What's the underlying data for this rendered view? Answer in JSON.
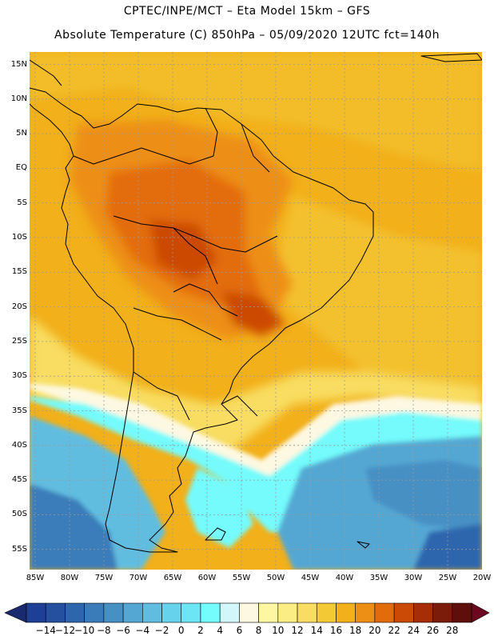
{
  "header": {
    "title_line1": "CPTEC/INPE/MCT –   Eta Model 15km – GFS",
    "title_line2": "Absolute Temperature (C) 850hPa – 05/09/2020 12UTC fct=140h"
  },
  "map": {
    "lat_labels": [
      "15N",
      "10N",
      "5N",
      "EQ",
      "5S",
      "10S",
      "15S",
      "20S",
      "25S",
      "30S",
      "35S",
      "40S",
      "45S",
      "50S",
      "55S"
    ],
    "lon_labels": [
      "85W",
      "80W",
      "75W",
      "70W",
      "65W",
      "60W",
      "55W",
      "50W",
      "45W",
      "40W",
      "35W",
      "30W",
      "25W",
      "20W"
    ]
  },
  "legend": {
    "labels": [
      "−14",
      "−12",
      "−10",
      "−8",
      "−6",
      "−4",
      "−2",
      "0",
      "2",
      "4",
      "6",
      "8",
      "10",
      "12",
      "14",
      "16",
      "18",
      "20",
      "22",
      "24",
      "26",
      "28"
    ],
    "colors": [
      "#1e3f96",
      "#24509f",
      "#2e66ad",
      "#3a7bba",
      "#4690c4",
      "#55a7d3",
      "#60bde0",
      "#66d2ec",
      "#6ce6f4",
      "#74fbfb",
      "#d3f6fb",
      "#fdf8e1",
      "#fdf7a1",
      "#fbec83",
      "#f8dd62",
      "#f4c936",
      "#f2b01a",
      "#ed8f14",
      "#e36c0a",
      "#cb4a06",
      "#a62d05",
      "#7b1c0a",
      "#5e0f0c"
    ],
    "low_arrow_color": "#1a2a6e",
    "high_arrow_color": "#6b0820"
  }
}
